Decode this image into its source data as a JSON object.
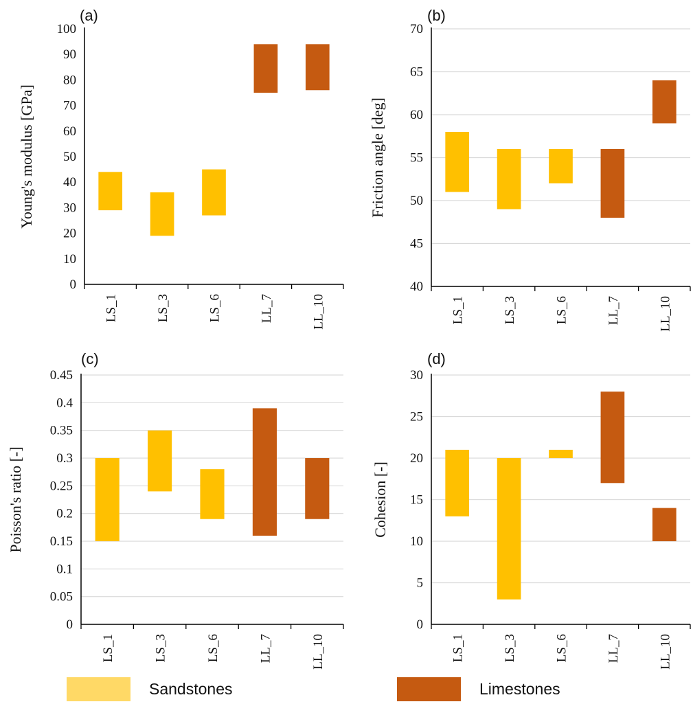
{
  "colors": {
    "sandstones": "#ffc000",
    "limestones": "#c55a11",
    "sandstones_legend": "#ffd966",
    "gridline": "#d9d9d9",
    "axis": "#000000"
  },
  "legend": {
    "items": [
      {
        "label": "Sandstones",
        "color": "#ffd966"
      },
      {
        "label": "Limestones",
        "color": "#c55a11"
      }
    ]
  },
  "chart_data": [
    {
      "type": "bar",
      "subtype": "floating-range",
      "panel_label": "(a)",
      "ylabel": "Young's modulus [GPa]",
      "ylim": [
        0,
        100
      ],
      "yticks": [
        "0",
        "10",
        "20",
        "30",
        "40",
        "50",
        "60",
        "70",
        "80",
        "90",
        "100"
      ],
      "categories": [
        "LS_1",
        "LS_3",
        "LS_6",
        "LL_7",
        "LL_10"
      ],
      "series_group": [
        "sandstones",
        "sandstones",
        "sandstones",
        "limestones",
        "limestones"
      ],
      "low": [
        29,
        19,
        27,
        75,
        76
      ],
      "high": [
        44,
        36,
        45,
        94,
        94
      ],
      "grid": false
    },
    {
      "type": "bar",
      "subtype": "floating-range",
      "panel_label": "(b)",
      "ylabel": "Friction angle [deg]",
      "ylim": [
        40,
        70
      ],
      "yticks": [
        "40",
        "45",
        "50",
        "55",
        "60",
        "65",
        "70"
      ],
      "categories": [
        "LS_1",
        "LS_3",
        "LS_6",
        "LL_7",
        "LL_10"
      ],
      "series_group": [
        "sandstones",
        "sandstones",
        "sandstones",
        "limestones",
        "limestones"
      ],
      "low": [
        51,
        49,
        52,
        48,
        59
      ],
      "high": [
        58,
        56,
        56,
        56,
        64
      ],
      "grid": true
    },
    {
      "type": "bar",
      "subtype": "floating-range",
      "panel_label": "(c)",
      "ylabel": "Poisson's ratio [-]",
      "ylim": [
        0,
        0.45
      ],
      "yticks": [
        "0",
        "0.05",
        "0.1",
        "0.15",
        "0.2",
        "0.25",
        "0.3",
        "0.35",
        "0.4",
        "0.45"
      ],
      "categories": [
        "LS_1",
        "LS_3",
        "LS_6",
        "LL_7",
        "LL_10"
      ],
      "series_group": [
        "sandstones",
        "sandstones",
        "sandstones",
        "limestones",
        "limestones"
      ],
      "low": [
        0.15,
        0.24,
        0.19,
        0.16,
        0.19
      ],
      "high": [
        0.3,
        0.35,
        0.28,
        0.39,
        0.3
      ],
      "grid": true
    },
    {
      "type": "bar",
      "subtype": "floating-range",
      "panel_label": "(d)",
      "ylabel": "Cohesion [-]",
      "ylim": [
        0,
        30
      ],
      "yticks": [
        "0",
        "5",
        "10",
        "15",
        "20",
        "25",
        "30"
      ],
      "categories": [
        "LS_1",
        "LS_3",
        "LS_6",
        "LL_7",
        "LL_10"
      ],
      "series_group": [
        "sandstones",
        "sandstones",
        "sandstones",
        "limestones",
        "limestones"
      ],
      "low": [
        13,
        3,
        20,
        17,
        10
      ],
      "high": [
        21,
        20,
        21,
        28,
        14
      ],
      "grid": true
    }
  ]
}
